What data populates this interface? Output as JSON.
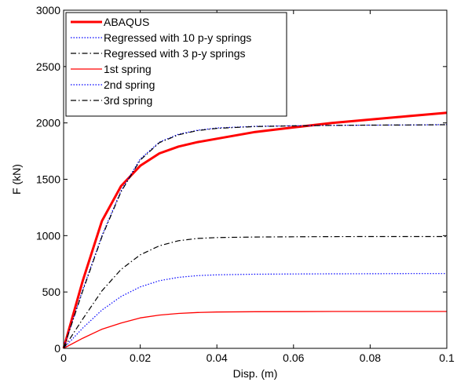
{
  "chart_data": {
    "type": "line",
    "xlabel": "Disp. (m)",
    "ylabel": "F (kN)",
    "xlim": [
      0,
      0.1
    ],
    "ylim": [
      0,
      3000
    ],
    "xticks": [
      0,
      0.02,
      0.04,
      0.06,
      0.08,
      0.1
    ],
    "xtick_labels": [
      "0",
      "0.02",
      "0.04",
      "0.06",
      "0.08",
      "0.1"
    ],
    "yticks": [
      0,
      500,
      1000,
      1500,
      2000,
      2500,
      3000
    ],
    "ytick_labels": [
      "0",
      "500",
      "1000",
      "1500",
      "2000",
      "2500",
      "3000"
    ],
    "grid": false,
    "legend_position": "top-left",
    "series": [
      {
        "name": "ABAQUS",
        "color": "#ff0000",
        "style": "solid-thick",
        "x": [
          0,
          0.005,
          0.01,
          0.015,
          0.02,
          0.025,
          0.03,
          0.035,
          0.04,
          0.05,
          0.06,
          0.07,
          0.08,
          0.09,
          0.1
        ],
        "y": [
          0,
          600,
          1130,
          1440,
          1620,
          1730,
          1790,
          1830,
          1860,
          1920,
          1960,
          2000,
          2030,
          2060,
          2090
        ]
      },
      {
        "name": "Regressed with 10 p-y springs",
        "color": "#0000ff",
        "style": "dotted",
        "x": [
          0,
          0.005,
          0.01,
          0.015,
          0.02,
          0.025,
          0.03,
          0.035,
          0.04,
          0.05,
          0.06,
          0.07,
          0.08,
          0.09,
          0.1
        ],
        "y": [
          0,
          520,
          1000,
          1400,
          1680,
          1830,
          1900,
          1935,
          1955,
          1970,
          1975,
          1978,
          1980,
          1982,
          1985
        ]
      },
      {
        "name": "Regressed with 3 p-y springs",
        "color": "#000000",
        "style": "dash-dot",
        "x": [
          0,
          0.005,
          0.01,
          0.015,
          0.02,
          0.025,
          0.03,
          0.035,
          0.04,
          0.05,
          0.06,
          0.07,
          0.08,
          0.09,
          0.1
        ],
        "y": [
          0,
          510,
          990,
          1390,
          1670,
          1825,
          1895,
          1932,
          1952,
          1968,
          1974,
          1978,
          1980,
          1982,
          1984
        ]
      },
      {
        "name": "1st spring",
        "color": "#ff0000",
        "style": "solid",
        "x": [
          0,
          0.005,
          0.01,
          0.015,
          0.02,
          0.025,
          0.03,
          0.035,
          0.04,
          0.05,
          0.06,
          0.07,
          0.08,
          0.09,
          0.1
        ],
        "y": [
          0,
          90,
          170,
          225,
          270,
          295,
          310,
          318,
          322,
          325,
          326,
          327,
          327,
          327,
          327
        ]
      },
      {
        "name": "2nd spring",
        "color": "#0000ff",
        "style": "dotted",
        "x": [
          0,
          0.005,
          0.01,
          0.015,
          0.02,
          0.025,
          0.03,
          0.035,
          0.04,
          0.05,
          0.06,
          0.07,
          0.08,
          0.09,
          0.1
        ],
        "y": [
          0,
          180,
          340,
          460,
          545,
          600,
          630,
          645,
          652,
          658,
          660,
          661,
          662,
          663,
          663
        ]
      },
      {
        "name": "3rd spring",
        "color": "#000000",
        "style": "dash-dot",
        "x": [
          0,
          0.005,
          0.01,
          0.015,
          0.02,
          0.025,
          0.03,
          0.035,
          0.04,
          0.05,
          0.06,
          0.07,
          0.08,
          0.09,
          0.1
        ],
        "y": [
          0,
          260,
          510,
          700,
          830,
          910,
          955,
          975,
          983,
          988,
          990,
          991,
          992,
          992,
          992
        ]
      }
    ]
  }
}
